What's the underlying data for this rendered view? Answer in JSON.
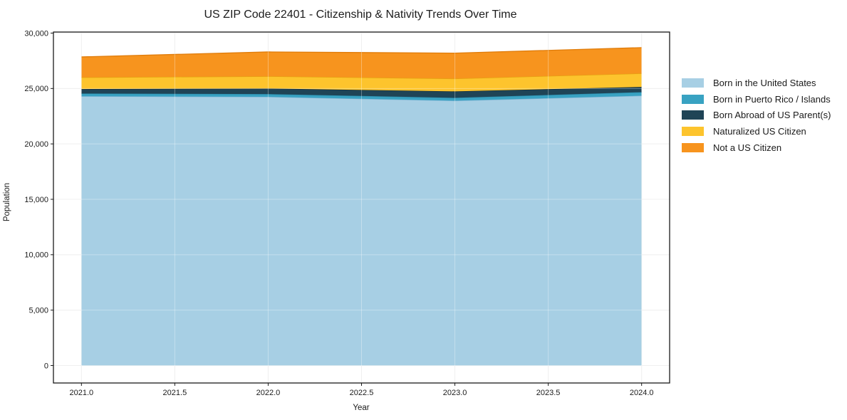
{
  "chart_data": {
    "type": "area",
    "stacked": true,
    "title": "US ZIP Code 22401 - Citizenship & Nativity Trends Over Time",
    "xlabel": "Year",
    "ylabel": "Population",
    "x": [
      2021,
      2022,
      2023,
      2024
    ],
    "series": [
      {
        "name": "Born in the United States",
        "color": "#a7cfe4",
        "edge_color": "#7eb3d3",
        "values": [
          24300,
          24250,
          23900,
          24350
        ]
      },
      {
        "name": "Born in Puerto Rico / Islands",
        "color": "#38a2c2",
        "edge_color": "#2b89a7",
        "values": [
          250,
          250,
          260,
          320
        ]
      },
      {
        "name": "Born Abroad of US Parent(s)",
        "color": "#1f4456",
        "edge_color": "#132e3b",
        "values": [
          400,
          500,
          580,
          470
        ]
      },
      {
        "name": "Naturalized US Citizen",
        "color": "#fdc42d",
        "edge_color": "#e3a410",
        "values": [
          1050,
          1100,
          1150,
          1220
        ]
      },
      {
        "name": "Not a US Citizen",
        "color": "#f7941e",
        "edge_color": "#e07c0a",
        "values": [
          1850,
          2200,
          2300,
          2330
        ]
      }
    ],
    "totals": [
      27850,
      28300,
      28190,
      28690
    ],
    "xticks": {
      "values": [
        2021.0,
        2021.5,
        2022.0,
        2022.5,
        2023.0,
        2023.5,
        2024.0
      ],
      "labels": [
        "2021.0",
        "2021.5",
        "2022.0",
        "2022.5",
        "2023.0",
        "2023.5",
        "2024.0"
      ]
    },
    "yticks": {
      "values": [
        0,
        5000,
        10000,
        15000,
        20000,
        25000,
        30000
      ],
      "labels": [
        "0",
        "5,000",
        "10,000",
        "15,000",
        "20,000",
        "25,000",
        "30,000"
      ]
    },
    "xlim": [
      2020.85,
      2024.15
    ],
    "ylim": [
      -1575,
      30095
    ],
    "grid": true,
    "legend_position": "right"
  }
}
